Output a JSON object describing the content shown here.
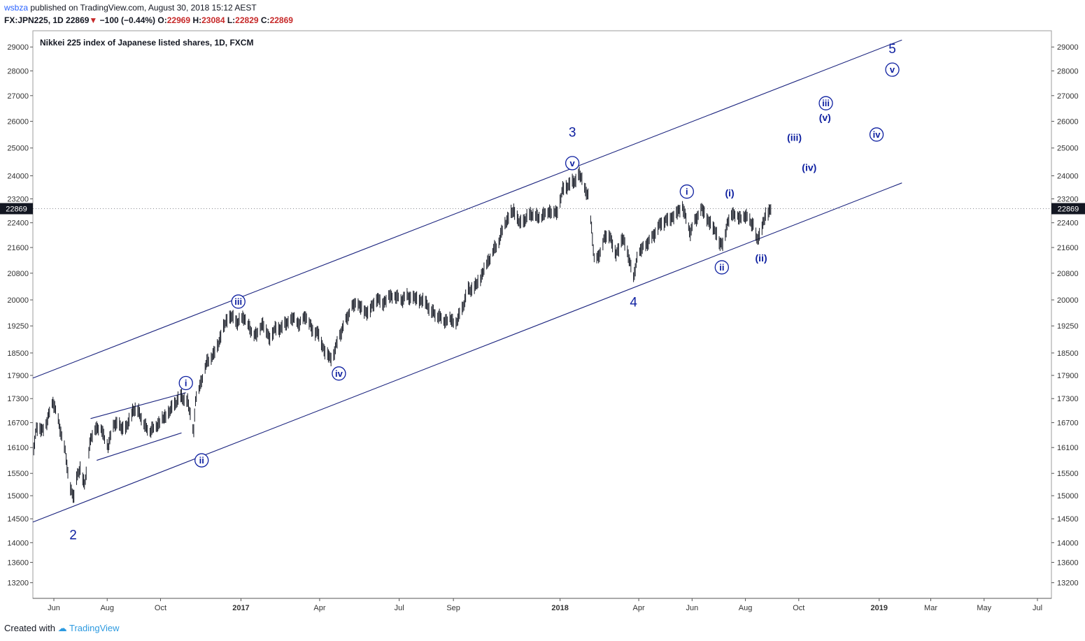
{
  "header": {
    "user": "wsbza",
    "published_text": "published on TradingView.com, August 30, 2018 15:12 AEST",
    "symbol": "FX:JPN225, 1D",
    "last": "22869",
    "change": "−100 (−0.44%)",
    "o_label": "O:",
    "o": "22969",
    "h_label": "H:",
    "h": "23084",
    "l_label": "L:",
    "l": "22829",
    "c_label": "C:",
    "c": "22869"
  },
  "footer": {
    "created_with": "Created with",
    "brand": "TradingView"
  },
  "colors": {
    "line": "#1a237e",
    "label": "#0d1fa0",
    "price_badge": "#131722",
    "axis": "#555555"
  },
  "chart_data": {
    "type": "line",
    "title": "Nikkei 225 index of Japanese listed shares, 1D, FXCM",
    "scale": "log",
    "ylim": [
      12900,
      29700
    ],
    "yticks": [
      13200,
      13600,
      14000,
      14500,
      15000,
      15500,
      16100,
      16700,
      17300,
      17900,
      18500,
      19250,
      20000,
      20800,
      21600,
      22400,
      23200,
      24000,
      25000,
      26000,
      27000,
      28000,
      29000
    ],
    "current_price": 22869,
    "xlim": [
      "2016-05-08",
      "2019-07-17"
    ],
    "xticks": [
      {
        "date": "2016-06-01",
        "label": "Jun",
        "bold": false
      },
      {
        "date": "2016-08-01",
        "label": "Aug",
        "bold": false
      },
      {
        "date": "2016-10-01",
        "label": "Oct",
        "bold": false
      },
      {
        "date": "2017-01-01",
        "label": "2017",
        "bold": true
      },
      {
        "date": "2017-04-01",
        "label": "Apr",
        "bold": false
      },
      {
        "date": "2017-07-01",
        "label": "Jul",
        "bold": false
      },
      {
        "date": "2017-09-01",
        "label": "Sep",
        "bold": false
      },
      {
        "date": "2018-01-01",
        "label": "2018",
        "bold": true
      },
      {
        "date": "2018-04-01",
        "label": "Apr",
        "bold": false
      },
      {
        "date": "2018-06-01",
        "label": "Jun",
        "bold": false
      },
      {
        "date": "2018-08-01",
        "label": "Aug",
        "bold": false
      },
      {
        "date": "2018-10-01",
        "label": "Oct",
        "bold": false
      },
      {
        "date": "2019-01-01",
        "label": "2019",
        "bold": true
      },
      {
        "date": "2019-03-01",
        "label": "Mar",
        "bold": false
      },
      {
        "date": "2019-05-01",
        "label": "May",
        "bold": false
      },
      {
        "date": "2019-07-01",
        "label": "Jul",
        "bold": false
      }
    ],
    "price_path": [
      [
        "2016-05-09",
        16100
      ],
      [
        "2016-05-12",
        16600
      ],
      [
        "2016-05-18",
        16500
      ],
      [
        "2016-05-24",
        16700
      ],
      [
        "2016-05-31",
        17250
      ],
      [
        "2016-06-07",
        16650
      ],
      [
        "2016-06-14",
        16000
      ],
      [
        "2016-06-18",
        15300
      ],
      [
        "2016-06-24",
        14950
      ],
      [
        "2016-06-27",
        15400
      ],
      [
        "2016-07-01",
        15650
      ],
      [
        "2016-07-06",
        15200
      ],
      [
        "2016-07-12",
        16200
      ],
      [
        "2016-07-19",
        16600
      ],
      [
        "2016-07-26",
        16500
      ],
      [
        "2016-08-02",
        16100
      ],
      [
        "2016-08-09",
        16700
      ],
      [
        "2016-08-16",
        16600
      ],
      [
        "2016-08-23",
        16550
      ],
      [
        "2016-08-30",
        17000
      ],
      [
        "2016-09-06",
        17000
      ],
      [
        "2016-09-13",
        16600
      ],
      [
        "2016-09-20",
        16500
      ],
      [
        "2016-09-27",
        16650
      ],
      [
        "2016-10-04",
        16800
      ],
      [
        "2016-10-11",
        16950
      ],
      [
        "2016-10-18",
        17200
      ],
      [
        "2016-10-25",
        17350
      ],
      [
        "2016-11-01",
        17200
      ],
      [
        "2016-11-08",
        16500
      ],
      [
        "2016-11-10",
        17250
      ],
      [
        "2016-11-17",
        17800
      ],
      [
        "2016-11-24",
        18300
      ],
      [
        "2016-12-01",
        18450
      ],
      [
        "2016-12-08",
        18900
      ],
      [
        "2016-12-15",
        19400
      ],
      [
        "2016-12-21",
        19500
      ],
      [
        "2016-12-28",
        19350
      ],
      [
        "2017-01-05",
        19500
      ],
      [
        "2017-01-12",
        19100
      ],
      [
        "2017-01-19",
        19000
      ],
      [
        "2017-01-26",
        19350
      ],
      [
        "2017-02-02",
        18900
      ],
      [
        "2017-02-09",
        19150
      ],
      [
        "2017-02-16",
        19200
      ],
      [
        "2017-02-23",
        19350
      ],
      [
        "2017-03-02",
        19450
      ],
      [
        "2017-03-09",
        19300
      ],
      [
        "2017-03-16",
        19550
      ],
      [
        "2017-03-23",
        19150
      ],
      [
        "2017-03-30",
        19050
      ],
      [
        "2017-04-06",
        18600
      ],
      [
        "2017-04-13",
        18350
      ],
      [
        "2017-04-17",
        18450
      ],
      [
        "2017-04-24",
        19000
      ],
      [
        "2017-05-01",
        19400
      ],
      [
        "2017-05-08",
        19800
      ],
      [
        "2017-05-15",
        19900
      ],
      [
        "2017-05-22",
        19650
      ],
      [
        "2017-05-29",
        19700
      ],
      [
        "2017-06-05",
        20050
      ],
      [
        "2017-06-12",
        19900
      ],
      [
        "2017-06-19",
        20100
      ],
      [
        "2017-06-26",
        20100
      ],
      [
        "2017-07-03",
        20000
      ],
      [
        "2017-07-10",
        20100
      ],
      [
        "2017-07-17",
        20050
      ],
      [
        "2017-07-24",
        20000
      ],
      [
        "2017-07-31",
        19950
      ],
      [
        "2017-08-07",
        19650
      ],
      [
        "2017-08-14",
        19550
      ],
      [
        "2017-08-21",
        19400
      ],
      [
        "2017-08-28",
        19450
      ],
      [
        "2017-09-04",
        19300
      ],
      [
        "2017-09-11",
        19750
      ],
      [
        "2017-09-18",
        20300
      ],
      [
        "2017-09-25",
        20350
      ],
      [
        "2017-10-02",
        20650
      ],
      [
        "2017-10-09",
        21100
      ],
      [
        "2017-10-16",
        21450
      ],
      [
        "2017-10-23",
        21800
      ],
      [
        "2017-10-30",
        22400
      ],
      [
        "2017-11-06",
        22700
      ],
      [
        "2017-11-09",
        22800
      ],
      [
        "2017-11-16",
        22350
      ],
      [
        "2017-11-23",
        22550
      ],
      [
        "2017-11-30",
        22700
      ],
      [
        "2017-12-07",
        22550
      ],
      [
        "2017-12-14",
        22700
      ],
      [
        "2017-12-21",
        22800
      ],
      [
        "2017-12-28",
        22700
      ],
      [
        "2018-01-04",
        23500
      ],
      [
        "2018-01-11",
        23700
      ],
      [
        "2018-01-18",
        23800
      ],
      [
        "2018-01-23",
        24050
      ],
      [
        "2018-01-29",
        23600
      ],
      [
        "2018-02-02",
        23300
      ],
      [
        "2018-02-06",
        22200
      ],
      [
        "2018-02-09",
        21300
      ],
      [
        "2018-02-14",
        21250
      ],
      [
        "2018-02-20",
        21900
      ],
      [
        "2018-02-27",
        22000
      ],
      [
        "2018-03-06",
        21350
      ],
      [
        "2018-03-13",
        21900
      ],
      [
        "2018-03-20",
        21400
      ],
      [
        "2018-03-26",
        20600
      ],
      [
        "2018-03-30",
        21300
      ],
      [
        "2018-04-06",
        21600
      ],
      [
        "2018-04-13",
        21800
      ],
      [
        "2018-04-20",
        22100
      ],
      [
        "2018-04-27",
        22400
      ],
      [
        "2018-05-07",
        22550
      ],
      [
        "2018-05-14",
        22700
      ],
      [
        "2018-05-21",
        22950
      ],
      [
        "2018-05-25",
        22500
      ],
      [
        "2018-05-30",
        22100
      ],
      [
        "2018-06-05",
        22500
      ],
      [
        "2018-06-12",
        22850
      ],
      [
        "2018-06-19",
        22500
      ],
      [
        "2018-06-26",
        22200
      ],
      [
        "2018-06-29",
        22100
      ],
      [
        "2018-07-03",
        21650
      ],
      [
        "2018-07-06",
        21750
      ],
      [
        "2018-07-12",
        22400
      ],
      [
        "2018-07-17",
        22750
      ],
      [
        "2018-07-24",
        22550
      ],
      [
        "2018-07-31",
        22600
      ],
      [
        "2018-08-06",
        22500
      ],
      [
        "2018-08-10",
        22300
      ],
      [
        "2018-08-14",
        21850
      ],
      [
        "2018-08-20",
        22200
      ],
      [
        "2018-08-24",
        22650
      ],
      [
        "2018-08-30",
        22869
      ]
    ],
    "channel": {
      "upper": [
        [
          "2016-05-08",
          17830
        ],
        [
          "2019-01-27",
          29300
        ]
      ],
      "lower": [
        [
          "2016-05-08",
          14430
        ],
        [
          "2019-01-27",
          23750
        ]
      ]
    },
    "triangle": {
      "upper": [
        [
          "2016-07-13",
          16800
        ],
        [
          "2016-10-30",
          17450
        ]
      ],
      "lower": [
        [
          "2016-07-20",
          15800
        ],
        [
          "2016-10-25",
          16450
        ]
      ]
    },
    "annotations": [
      {
        "text": "2",
        "date": "2016-06-23",
        "price": 14170,
        "circled": false,
        "size": "large"
      },
      {
        "text": "i",
        "date": "2016-10-30",
        "price": 17700,
        "circled": true
      },
      {
        "text": "ii",
        "date": "2016-11-17",
        "price": 15800,
        "circled": true
      },
      {
        "text": "iii",
        "date": "2016-12-29",
        "price": 19950,
        "circled": true
      },
      {
        "text": "iv",
        "date": "2017-04-23",
        "price": 17950,
        "circled": true
      },
      {
        "text": "3",
        "date": "2018-01-15",
        "price": 25600,
        "circled": false,
        "size": "large"
      },
      {
        "text": "v",
        "date": "2018-01-15",
        "price": 24450,
        "circled": true
      },
      {
        "text": "4",
        "date": "2018-03-26",
        "price": 19950,
        "circled": false,
        "size": "large"
      },
      {
        "text": "i",
        "date": "2018-05-26",
        "price": 23450,
        "circled": true
      },
      {
        "text": "(i)",
        "date": "2018-07-14",
        "price": 23400,
        "circled": false
      },
      {
        "text": "ii",
        "date": "2018-07-05",
        "price": 20980,
        "circled": true
      },
      {
        "text": "(ii)",
        "date": "2018-08-19",
        "price": 21270,
        "circled": false
      },
      {
        "text": "(iii)",
        "date": "2018-09-26",
        "price": 25400,
        "circled": false
      },
      {
        "text": "(iv)",
        "date": "2018-10-13",
        "price": 24300,
        "circled": false
      },
      {
        "text": "iii",
        "date": "2018-11-01",
        "price": 26700,
        "circled": true
      },
      {
        "text": "(v)",
        "date": "2018-10-31",
        "price": 26150,
        "circled": false
      },
      {
        "text": "iv",
        "date": "2018-12-29",
        "price": 25500,
        "circled": true
      },
      {
        "text": "5",
        "date": "2019-01-16",
        "price": 28950,
        "circled": false,
        "size": "large"
      },
      {
        "text": "v",
        "date": "2019-01-16",
        "price": 28050,
        "circled": true
      }
    ]
  }
}
